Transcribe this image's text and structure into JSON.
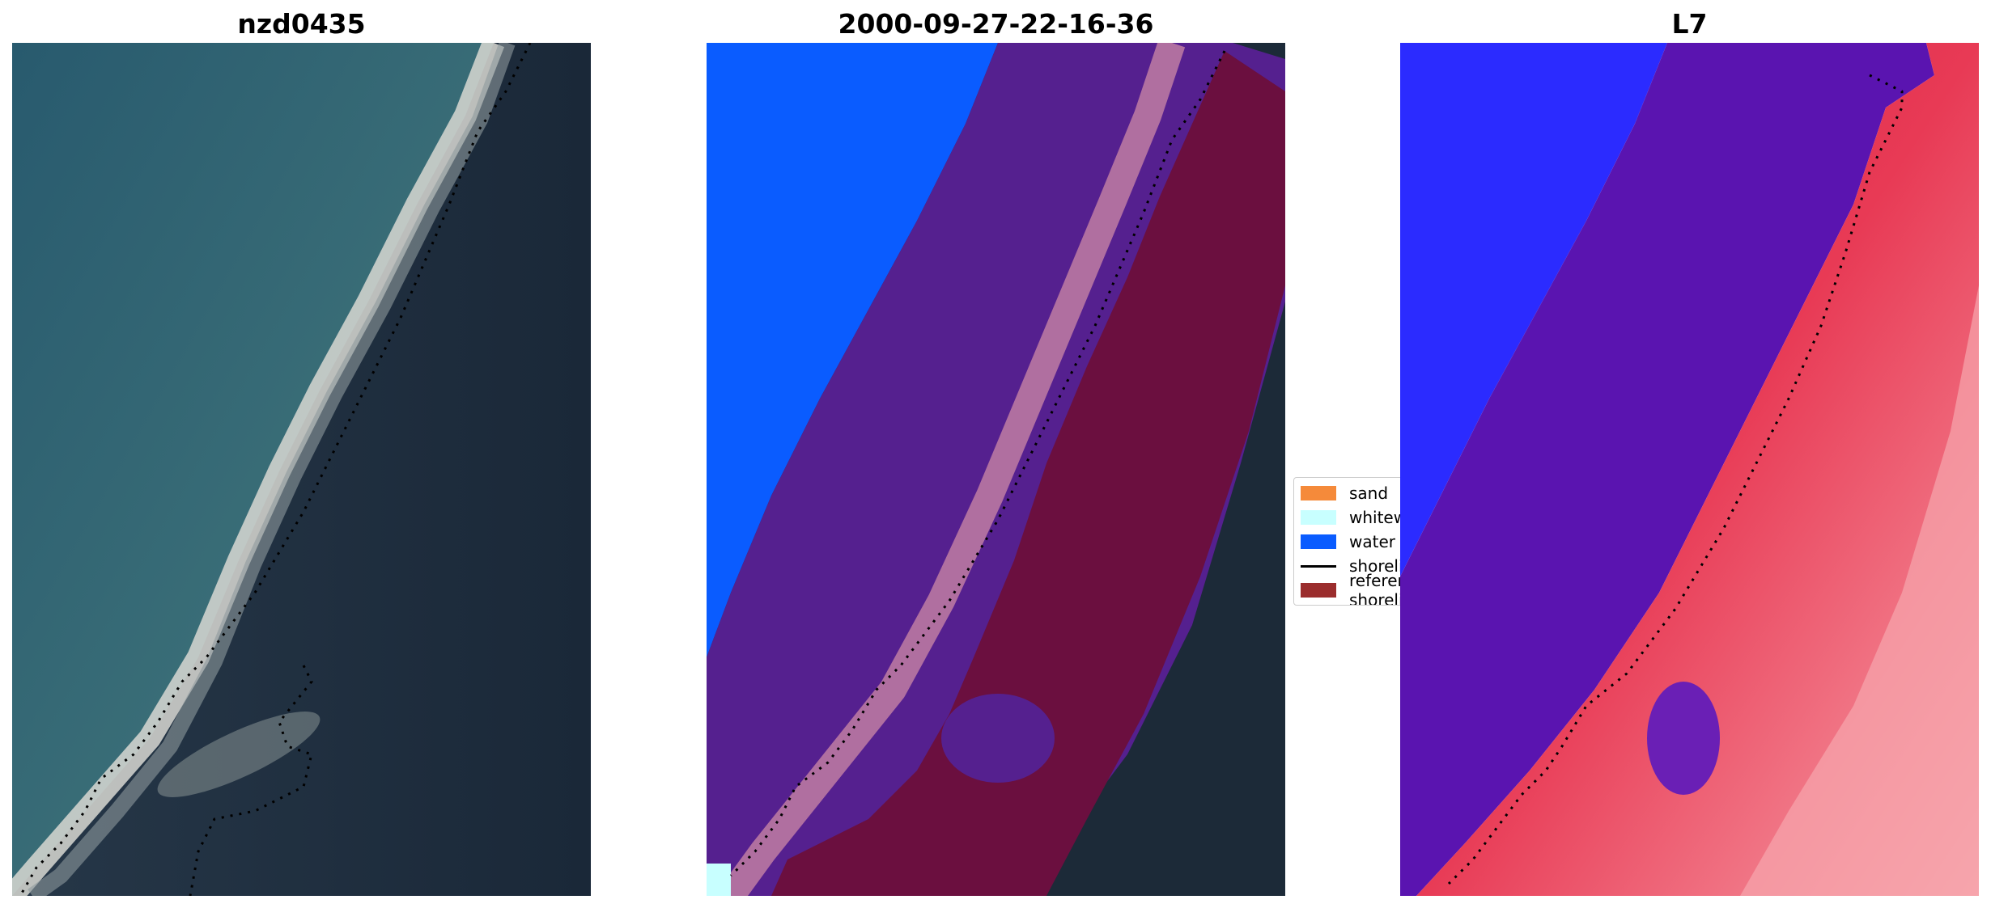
{
  "panels": [
    {
      "title": "nzd0435"
    },
    {
      "title": "2000-09-27-22-16-36"
    },
    {
      "title": "L7"
    }
  ],
  "legend": {
    "items": [
      {
        "label": "sand",
        "color": "#f58a3a",
        "kind": "patch"
      },
      {
        "label": "whitewater",
        "color": "#c8ffff",
        "kind": "patch"
      },
      {
        "label": "water",
        "color": "#0a5cff",
        "kind": "patch"
      },
      {
        "label": "shoreline",
        "color": "#000000",
        "kind": "line"
      },
      {
        "label": "reference shoreline",
        "color": "#9b2d2d",
        "kind": "patch"
      }
    ]
  },
  "colors": {
    "ocean": "#2c5a6b",
    "land": "#1f2e3c",
    "beach": "#d9d9d4",
    "water_class": "#0a5cff",
    "purple_overlay": "#55208f",
    "land_overlay": "#6b0f3f",
    "pink_band": "#b06fa0",
    "blue_index": "#2b2bff",
    "red_index": "#e0203f"
  }
}
